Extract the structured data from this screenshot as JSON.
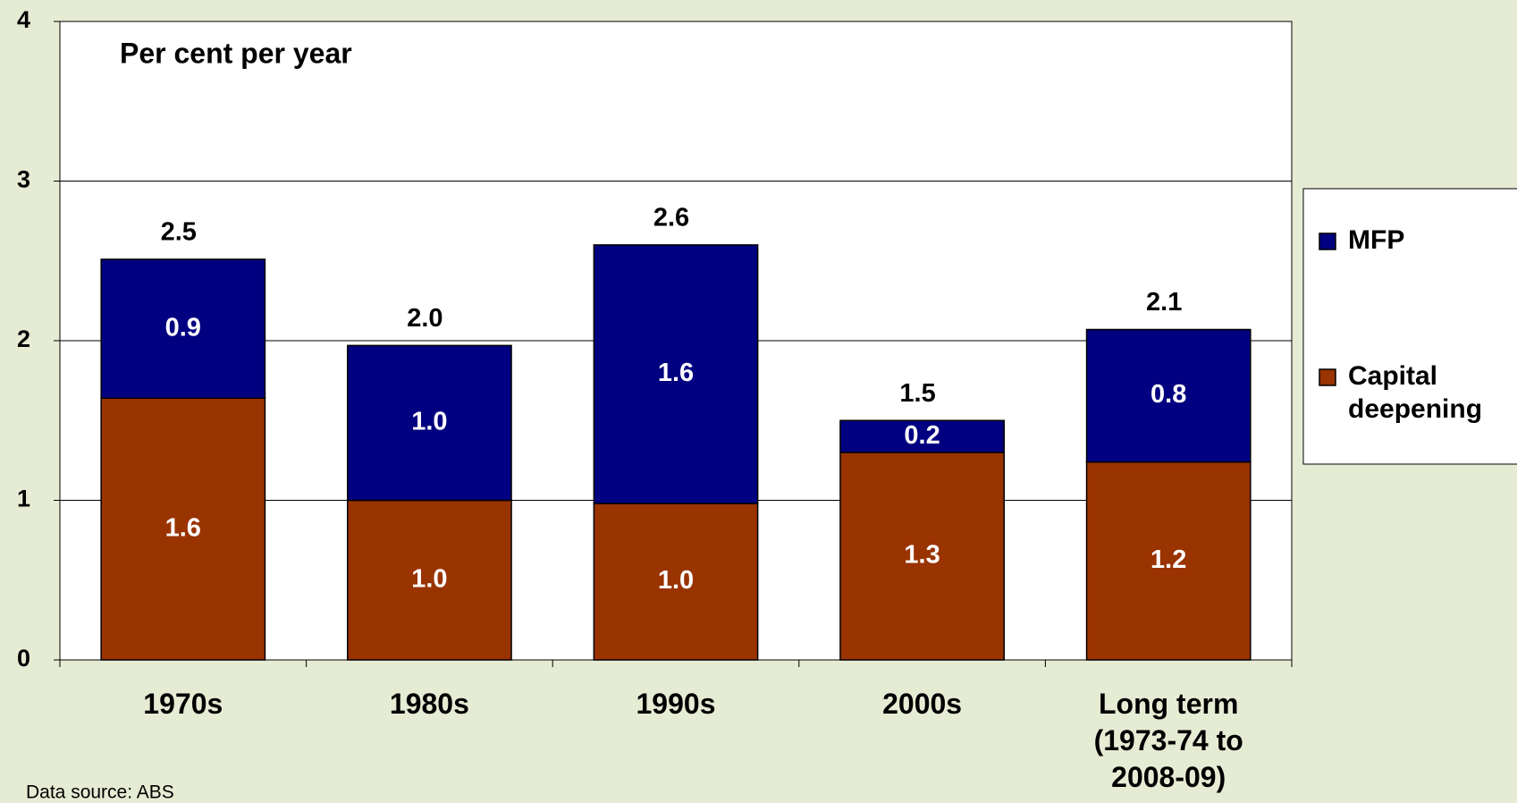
{
  "chart_data": {
    "type": "stacked_bar",
    "annotation": "Per cent per year",
    "source": "Data source: ABS",
    "categories": [
      "1970s",
      "1980s",
      "1990s",
      "2000s",
      "Long term\n(1973-74 to\n2008-09)"
    ],
    "series": [
      {
        "name": "Capital deepening",
        "color": "#993300",
        "values": [
          1.64,
          1.0,
          0.98,
          1.3,
          1.24
        ],
        "value_labels": [
          "1.6",
          "1.0",
          "1.0",
          "1.3",
          "1.2"
        ]
      },
      {
        "name": "MFP",
        "color": "#000080",
        "values": [
          0.87,
          0.97,
          1.62,
          0.2,
          0.83
        ],
        "value_labels": [
          "0.9",
          "1.0",
          "1.6",
          "0.2",
          "0.8"
        ]
      }
    ],
    "totals": {
      "values": [
        2.51,
        1.97,
        2.6,
        1.5,
        2.07
      ],
      "value_labels": [
        "2.5",
        "2.0",
        "2.6",
        "1.5",
        "2.1"
      ]
    },
    "ylim": [
      0,
      4
    ],
    "yticks": [
      0,
      1,
      2,
      3,
      4
    ],
    "grid": true,
    "legend": "right"
  }
}
